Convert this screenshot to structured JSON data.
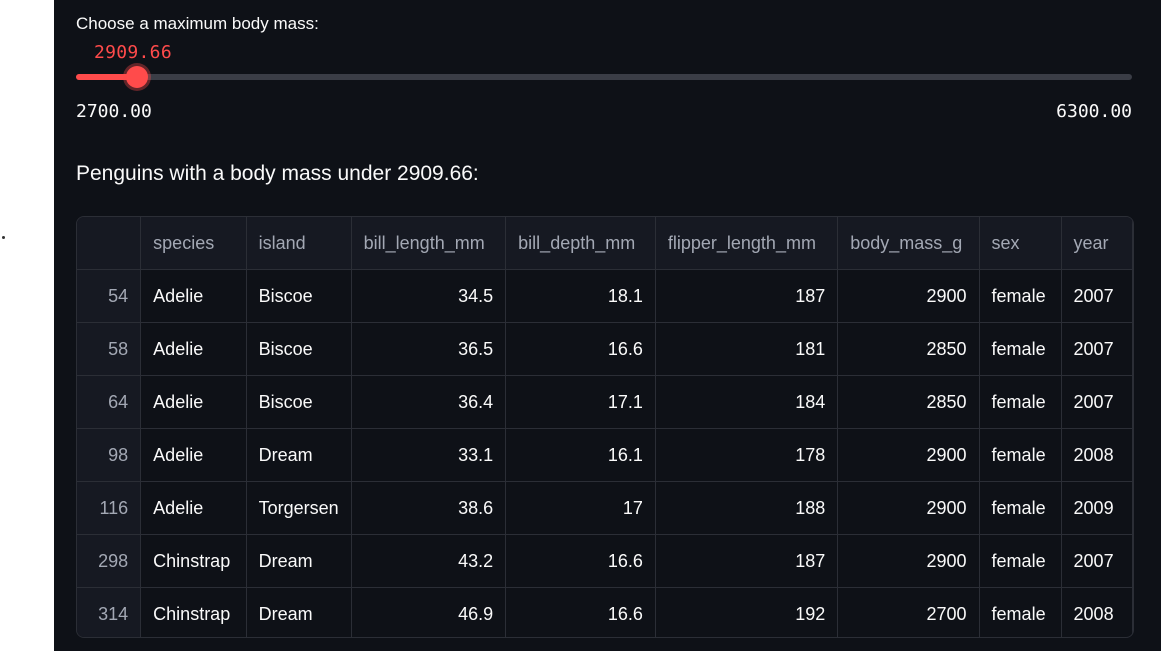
{
  "slider": {
    "label": "Choose a maximum body mass:",
    "value": "2909.66",
    "min": "2700.00",
    "max": "6300.00",
    "fraction": 0.0582
  },
  "heading": "Penguins with a body mass under 2909.66:",
  "table": {
    "columns": [
      "",
      "species",
      "island",
      "bill_length_mm",
      "bill_depth_mm",
      "flipper_length_mm",
      "body_mass_g",
      "sex",
      "year"
    ],
    "rows": [
      [
        "54",
        "Adelie",
        "Biscoe",
        "34.5",
        "18.1",
        "187",
        "2900",
        "female",
        "2007"
      ],
      [
        "58",
        "Adelie",
        "Biscoe",
        "36.5",
        "16.6",
        "181",
        "2850",
        "female",
        "2007"
      ],
      [
        "64",
        "Adelie",
        "Biscoe",
        "36.4",
        "17.1",
        "184",
        "2850",
        "female",
        "2007"
      ],
      [
        "98",
        "Adelie",
        "Dream",
        "33.1",
        "16.1",
        "178",
        "2900",
        "female",
        "2008"
      ],
      [
        "116",
        "Adelie",
        "Torgersen",
        "38.6",
        "17",
        "188",
        "2900",
        "female",
        "2009"
      ],
      [
        "298",
        "Chinstrap",
        "Dream",
        "43.2",
        "16.6",
        "187",
        "2900",
        "female",
        "2007"
      ],
      [
        "314",
        "Chinstrap",
        "Dream",
        "46.9",
        "16.6",
        "192",
        "2700",
        "female",
        "2008"
      ]
    ]
  },
  "colors": {
    "accent": "#ff4b4b",
    "background": "#0e1117",
    "grid": "#2b2e36"
  }
}
